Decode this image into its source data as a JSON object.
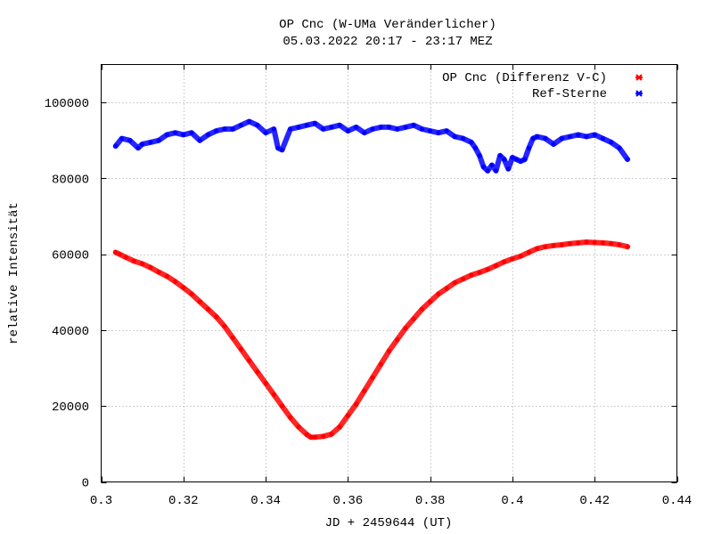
{
  "chart_data": {
    "type": "scatter",
    "title": "OP Cnc (W-UMa Veränderlicher)",
    "subtitle": "05.03.2022 20:17 - 23:17 MEZ",
    "xlabel": "JD + 2459644 (UT)",
    "ylabel": "relative Intensität",
    "xlim": [
      0.3,
      0.44
    ],
    "ylim": [
      0,
      110000
    ],
    "xticks": [
      0.3,
      0.32,
      0.34,
      0.36,
      0.38,
      0.4,
      0.42,
      0.44
    ],
    "xtick_labels": [
      "0.3",
      "0.32",
      "0.34",
      "0.36",
      "0.38",
      "0.4",
      "0.42",
      "0.44"
    ],
    "yticks": [
      0,
      20000,
      40000,
      60000,
      80000,
      100000
    ],
    "ytick_labels": [
      "0",
      "20000",
      "40000",
      "60000",
      "80000",
      "100000"
    ],
    "grid": true,
    "legend_position": "top-right",
    "series": [
      {
        "name": "OP Cnc (Differenz V-C)",
        "color": "#ff0000",
        "x": [
          0.3035,
          0.3045,
          0.306,
          0.308,
          0.31,
          0.312,
          0.314,
          0.316,
          0.318,
          0.32,
          0.322,
          0.324,
          0.326,
          0.328,
          0.33,
          0.332,
          0.334,
          0.336,
          0.338,
          0.34,
          0.342,
          0.344,
          0.346,
          0.348,
          0.35,
          0.351,
          0.352,
          0.354,
          0.356,
          0.358,
          0.36,
          0.362,
          0.364,
          0.366,
          0.368,
          0.37,
          0.372,
          0.374,
          0.376,
          0.378,
          0.38,
          0.382,
          0.384,
          0.386,
          0.388,
          0.39,
          0.392,
          0.394,
          0.396,
          0.398,
          0.4,
          0.402,
          0.404,
          0.406,
          0.408,
          0.41,
          0.412,
          0.414,
          0.416,
          0.418,
          0.42,
          0.422,
          0.424,
          0.426,
          0.428
        ],
        "y": [
          60500,
          60000,
          59200,
          58200,
          57500,
          56500,
          55300,
          54200,
          52800,
          51200,
          49500,
          47500,
          45500,
          43500,
          41000,
          38000,
          35000,
          32000,
          29000,
          26000,
          23000,
          20000,
          17000,
          14500,
          12500,
          11800,
          11800,
          12000,
          12600,
          14500,
          17500,
          20500,
          24000,
          27500,
          31000,
          34500,
          37500,
          40500,
          43000,
          45500,
          47500,
          49500,
          51000,
          52500,
          53500,
          54500,
          55200,
          56000,
          57000,
          58000,
          58800,
          59500,
          60500,
          61500,
          62000,
          62300,
          62500,
          62800,
          63000,
          63200,
          63100,
          63000,
          62800,
          62500,
          62000
        ]
      },
      {
        "name": "Ref-Sterne",
        "color": "#0000ff",
        "x": [
          0.3035,
          0.305,
          0.307,
          0.309,
          0.31,
          0.312,
          0.314,
          0.316,
          0.318,
          0.32,
          0.322,
          0.324,
          0.326,
          0.328,
          0.33,
          0.332,
          0.334,
          0.336,
          0.338,
          0.34,
          0.342,
          0.343,
          0.344,
          0.346,
          0.348,
          0.35,
          0.352,
          0.354,
          0.356,
          0.358,
          0.36,
          0.362,
          0.364,
          0.366,
          0.368,
          0.37,
          0.372,
          0.374,
          0.376,
          0.378,
          0.38,
          0.382,
          0.384,
          0.386,
          0.388,
          0.39,
          0.391,
          0.392,
          0.393,
          0.394,
          0.395,
          0.396,
          0.397,
          0.398,
          0.399,
          0.4,
          0.401,
          0.402,
          0.403,
          0.404,
          0.405,
          0.406,
          0.408,
          0.41,
          0.412,
          0.414,
          0.416,
          0.418,
          0.42,
          0.422,
          0.424,
          0.426,
          0.428
        ],
        "y": [
          88500,
          90500,
          90000,
          88000,
          89000,
          89500,
          90000,
          91500,
          92000,
          91500,
          92000,
          90000,
          91500,
          92500,
          93000,
          93000,
          94000,
          95000,
          94000,
          92000,
          93000,
          88000,
          87500,
          93000,
          93500,
          94000,
          94500,
          93000,
          93500,
          94000,
          92500,
          93500,
          92000,
          93000,
          93500,
          93500,
          93000,
          93500,
          94000,
          93000,
          92500,
          92000,
          92500,
          91000,
          90500,
          89500,
          88000,
          86000,
          83000,
          82000,
          83500,
          82000,
          86000,
          85000,
          82500,
          85500,
          85000,
          84500,
          85000,
          88000,
          90500,
          91000,
          90500,
          89000,
          90500,
          91000,
          91500,
          91000,
          91500,
          90500,
          89500,
          88000,
          85000
        ]
      }
    ]
  }
}
